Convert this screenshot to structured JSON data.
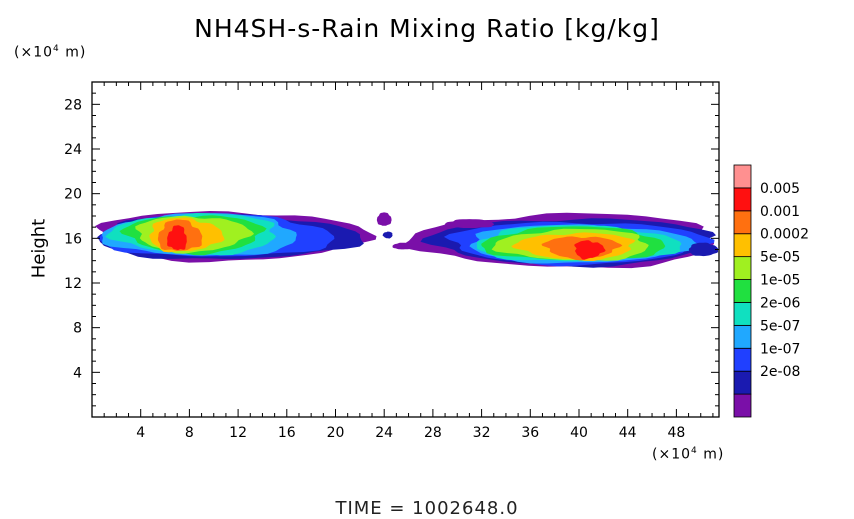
{
  "title": "NH4SH-s-Rain Mixing Ratio [kg/kg]",
  "y_unit": "(×10⁴ m)",
  "x_unit": "(×10⁴ m)",
  "time_label": "TIME  =  1002648.0",
  "chart_data": {
    "type": "heatmap",
    "title": "NH4SH-s-Rain Mixing Ratio [kg/kg]",
    "ylabel": "Height",
    "xlim": [
      0,
      51.5
    ],
    "ylim": [
      0,
      30
    ],
    "x_ticks": [
      4,
      8,
      12,
      16,
      20,
      24,
      28,
      32,
      36,
      40,
      44,
      48
    ],
    "y_ticks": [
      4,
      8,
      12,
      16,
      20,
      24,
      28
    ],
    "colorbar": {
      "labels": [
        "0.005",
        "0.001",
        "0.0002",
        "5e-05",
        "1e-05",
        "2e-06",
        "5e-07",
        "1e-07",
        "2e-08"
      ],
      "colors": [
        "#7a0fa8",
        "#1a1ab0",
        "#2040ff",
        "#20a8ff",
        "#10e0c0",
        "#20e040",
        "#a0f020",
        "#ffc000",
        "#ff7010",
        "#ff1010",
        "#ff9090"
      ]
    },
    "regions": [
      {
        "name": "left-cloud",
        "x_range": [
          0,
          22.5
        ],
        "y_range": [
          13.5,
          19
        ],
        "max_at": [
          7,
          16
        ]
      },
      {
        "name": "right-cloud",
        "x_range": [
          25.5,
          51.5
        ],
        "y_range": [
          13.2,
          18.8
        ],
        "max_at": [
          41,
          15
        ]
      }
    ]
  }
}
